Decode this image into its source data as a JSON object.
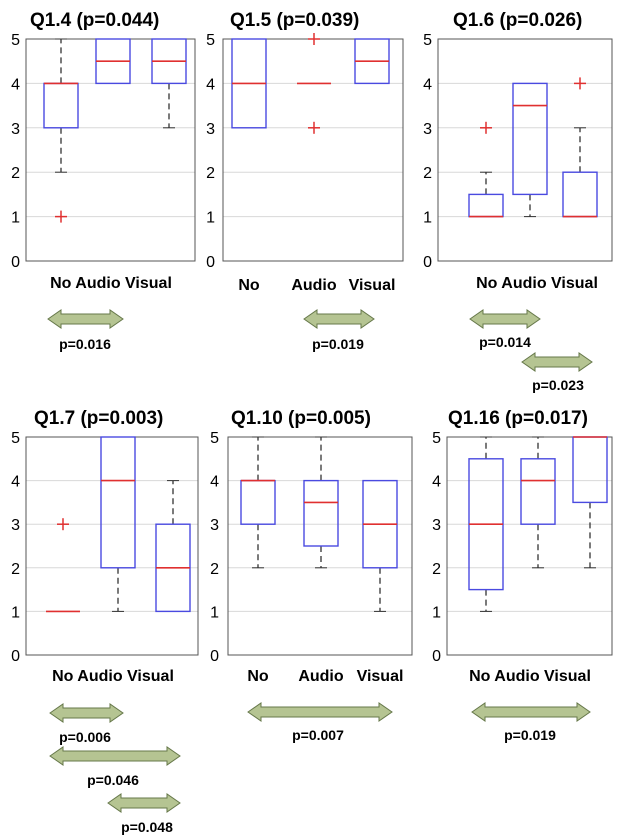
{
  "chart_data": [
    {
      "type": "box",
      "title": "Q1.4 (p=0.044)",
      "categories": [
        "No",
        "Audio",
        "Visual"
      ],
      "category_label": "No Audio Visual",
      "ylim": [
        0,
        5
      ],
      "yticks": [
        "0",
        "1",
        "2",
        "3",
        "4",
        "5"
      ],
      "grid": true,
      "boxes": [
        {
          "category": "No",
          "q1": 3,
          "median": 4,
          "q3": 4,
          "whisker_low": 2,
          "whisker_high": 5,
          "outliers": [
            1
          ]
        },
        {
          "category": "Audio",
          "q1": 4,
          "median": 4.5,
          "q3": 5,
          "whisker_low": 4,
          "whisker_high": 5,
          "outliers": []
        },
        {
          "category": "Visual",
          "q1": 4,
          "median": 4.5,
          "q3": 5,
          "whisker_low": 3,
          "whisker_high": 5,
          "outliers": []
        }
      ],
      "comparisons": [
        {
          "from": "No",
          "to": "Audio",
          "label": "p=0.016"
        }
      ]
    },
    {
      "type": "box",
      "title": "Q1.5 (p=0.039)",
      "categories": [
        "No",
        "Audio",
        "Visual"
      ],
      "ylim": [
        0,
        5
      ],
      "yticks": [
        "0",
        "1",
        "2",
        "3",
        "4",
        "5"
      ],
      "grid": true,
      "boxes": [
        {
          "category": "No",
          "q1": 3,
          "median": 4,
          "q3": 5,
          "whisker_low": 3,
          "whisker_high": 5,
          "outliers": []
        },
        {
          "category": "Audio",
          "q1": 4,
          "median": 4,
          "q3": 4,
          "whisker_low": 4,
          "whisker_high": 4,
          "outliers": [
            3,
            5
          ]
        },
        {
          "category": "Visual",
          "q1": 4,
          "median": 4.5,
          "q3": 5,
          "whisker_low": 4,
          "whisker_high": 5,
          "outliers": []
        }
      ],
      "comparisons": [
        {
          "from": "Audio",
          "to": "Visual",
          "label": "p=0.019"
        }
      ]
    },
    {
      "type": "box",
      "title": "Q1.6 (p=0.026)",
      "categories": [
        "No",
        "Audio",
        "Visual"
      ],
      "category_label": "No Audio Visual",
      "ylim": [
        0,
        5
      ],
      "yticks": [
        "0",
        "1",
        "2",
        "3",
        "4",
        "5"
      ],
      "grid": true,
      "boxes": [
        {
          "category": "No",
          "q1": 1,
          "median": 1,
          "q3": 1.5,
          "whisker_low": 1,
          "whisker_high": 2,
          "outliers": [
            3
          ]
        },
        {
          "category": "Audio",
          "q1": 1.5,
          "median": 3.5,
          "q3": 4,
          "whisker_low": 1,
          "whisker_high": 4,
          "outliers": []
        },
        {
          "category": "Visual",
          "q1": 1,
          "median": 1,
          "q3": 2,
          "whisker_low": 1,
          "whisker_high": 3,
          "outliers": [
            4
          ]
        }
      ],
      "comparisons": [
        {
          "from": "No",
          "to": "Audio",
          "label": "p=0.014"
        },
        {
          "from": "Audio",
          "to": "Visual",
          "label": "p=0.023"
        }
      ]
    },
    {
      "type": "box",
      "title": "Q1.7 (p=0.003)",
      "categories": [
        "No",
        "Audio",
        "Visual"
      ],
      "category_label": "No Audio Visual",
      "ylim": [
        0,
        5
      ],
      "yticks": [
        "0",
        "1",
        "2",
        "3",
        "4",
        "5"
      ],
      "grid": true,
      "boxes": [
        {
          "category": "No",
          "q1": 1,
          "median": 1,
          "q3": 1,
          "whisker_low": 1,
          "whisker_high": 1,
          "outliers": [
            3
          ]
        },
        {
          "category": "Audio",
          "q1": 2,
          "median": 4,
          "q3": 5,
          "whisker_low": 1,
          "whisker_high": 5,
          "outliers": []
        },
        {
          "category": "Visual",
          "q1": 1,
          "median": 2,
          "q3": 3,
          "whisker_low": 1,
          "whisker_high": 4,
          "outliers": []
        }
      ],
      "comparisons": [
        {
          "from": "No",
          "to": "Audio",
          "label": "p=0.006"
        },
        {
          "from": "No",
          "to": "Visual",
          "label": "p=0.046"
        },
        {
          "from": "Audio",
          "to": "Visual",
          "label": "p=0.048"
        }
      ]
    },
    {
      "type": "box",
      "title": "Q1.10 (p=0.005)",
      "categories": [
        "No",
        "Audio",
        "Visual"
      ],
      "ylim": [
        0,
        5
      ],
      "yticks": [
        "0",
        "1",
        "2",
        "3",
        "4",
        "5"
      ],
      "grid": true,
      "boxes": [
        {
          "category": "No",
          "q1": 3,
          "median": 4,
          "q3": 4,
          "whisker_low": 2,
          "whisker_high": 5,
          "outliers": []
        },
        {
          "category": "Audio",
          "q1": 2.5,
          "median": 3.5,
          "q3": 4,
          "whisker_low": 2,
          "whisker_high": 5,
          "outliers": []
        },
        {
          "category": "Visual",
          "q1": 2,
          "median": 3,
          "q3": 4,
          "whisker_low": 1,
          "whisker_high": 4,
          "outliers": []
        }
      ],
      "comparisons": [
        {
          "from": "No",
          "to": "Visual",
          "label": "p=0.007"
        }
      ]
    },
    {
      "type": "box",
      "title": "Q1.16 (p=0.017)",
      "categories": [
        "No",
        "Audio",
        "Visual"
      ],
      "category_label": "No Audio Visual",
      "ylim": [
        0,
        5
      ],
      "yticks": [
        "0",
        "1",
        "2",
        "3",
        "4",
        "5"
      ],
      "grid": true,
      "boxes": [
        {
          "category": "No",
          "q1": 1.5,
          "median": 3,
          "q3": 4.5,
          "whisker_low": 1,
          "whisker_high": 5,
          "outliers": []
        },
        {
          "category": "Audio",
          "q1": 3,
          "median": 4,
          "q3": 4.5,
          "whisker_low": 2,
          "whisker_high": 5,
          "outliers": []
        },
        {
          "category": "Visual",
          "q1": 3.5,
          "median": 5,
          "q3": 5,
          "whisker_low": 2,
          "whisker_high": 5,
          "outliers": []
        }
      ],
      "comparisons": [
        {
          "from": "No",
          "to": "Visual",
          "label": "p=0.019"
        }
      ]
    }
  ],
  "colors": {
    "box": "#4a4ae0",
    "median": "#e03030",
    "outlier": "#e03030",
    "whisker": "#333333",
    "grid": "#d8d8d8",
    "axes": "#555555",
    "arrow_fill": "#b5c492",
    "arrow_stroke": "#66784a"
  }
}
